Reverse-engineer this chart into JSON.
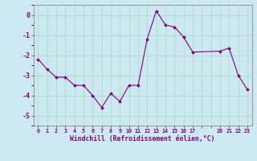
{
  "hours": [
    0,
    1,
    2,
    3,
    4,
    5,
    6,
    7,
    8,
    9,
    10,
    11,
    12,
    13,
    14,
    15,
    16,
    17,
    20,
    21,
    22,
    23
  ],
  "values": [
    -2.2,
    -2.7,
    -3.1,
    -3.1,
    -3.5,
    -3.5,
    -4.0,
    -4.6,
    -3.9,
    -4.3,
    -3.5,
    -3.5,
    -1.2,
    0.2,
    -0.5,
    -0.6,
    -1.1,
    -1.85,
    -1.8,
    -1.65,
    -3.0,
    -3.7
  ],
  "line_color": "#800080",
  "marker_color": "#800080",
  "bg_color": "#cce8f0",
  "grid_color": "#aaddcc",
  "xlabel": "Windchill (Refroidissement éolien,°C)",
  "xlabel_color": "#800080",
  "yticks": [
    0,
    -1,
    -2,
    -3,
    -4,
    -5
  ],
  "ylim": [
    -5.5,
    0.5
  ],
  "xlim": [
    -0.5,
    23.5
  ]
}
